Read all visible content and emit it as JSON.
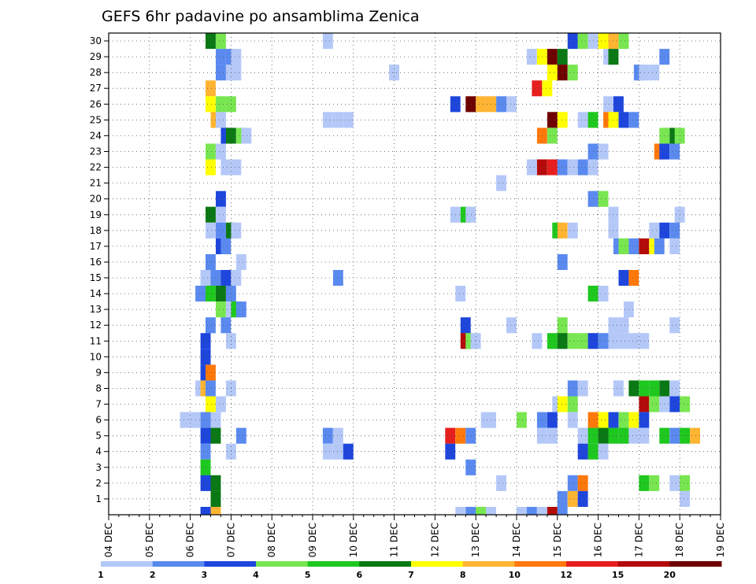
{
  "chart_data": {
    "type": "heatmap",
    "title": "GEFS 6hr padavine po ansamblima Zenica",
    "y_categories": [
      "1",
      "2",
      "3",
      "4",
      "5",
      "6",
      "7",
      "8",
      "9",
      "10",
      "11",
      "12",
      "13",
      "14",
      "15",
      "16",
      "17",
      "18",
      "19",
      "20",
      "21",
      "22",
      "23",
      "24",
      "25",
      "26",
      "27",
      "28",
      "29",
      "30"
    ],
    "x_ticks": [
      "04 DEC",
      "05 DEC",
      "06 DEC",
      "07 DEC",
      "08 DEC",
      "09 DEC",
      "10 DEC",
      "11 DEC",
      "12 DEC",
      "13 DEC",
      "14 DEC",
      "15 DEC",
      "16 DEC",
      "17 DEC",
      "18 DEC",
      "19 DEC"
    ],
    "x_range_days": [
      0,
      15
    ],
    "steps_per_day": 4,
    "grid": true,
    "colorbar": {
      "labels": [
        "1",
        "2",
        "3",
        "4",
        "5",
        "6",
        "7",
        "8",
        "10",
        "12",
        "15",
        "20"
      ],
      "colors": [
        "#b4c8f8",
        "#5a8aef",
        "#1e46dc",
        "#78e650",
        "#1ec81e",
        "#0a7814",
        "#ffff00",
        "#ffb432",
        "#ff780a",
        "#e61e1e",
        "#b40a0a",
        "#6e0000"
      ]
    },
    "cells": [
      [
        9.5,
        30,
        5
      ],
      [
        10.5,
        30,
        3
      ],
      [
        21,
        30,
        0
      ],
      [
        45,
        30,
        3
      ],
      [
        45,
        30,
        2
      ],
      [
        46,
        30,
        3
      ],
      [
        47,
        30,
        0
      ],
      [
        48,
        30,
        6
      ],
      [
        49,
        30,
        7
      ],
      [
        50,
        30,
        3
      ],
      [
        10.5,
        29,
        1
      ],
      [
        11.5,
        29,
        1
      ],
      [
        12,
        29,
        0
      ],
      [
        41,
        29,
        0
      ],
      [
        42,
        29,
        6
      ],
      [
        43,
        29,
        11
      ],
      [
        44,
        29,
        5
      ],
      [
        48.5,
        29,
        0
      ],
      [
        49,
        29,
        5
      ],
      [
        54,
        29,
        1
      ],
      [
        10.5,
        28,
        1
      ],
      [
        11.5,
        28,
        0
      ],
      [
        12,
        28,
        0
      ],
      [
        27.5,
        28,
        0
      ],
      [
        43,
        28,
        6
      ],
      [
        44,
        28,
        11
      ],
      [
        45,
        28,
        3
      ],
      [
        51.5,
        28,
        1
      ],
      [
        52,
        28,
        0
      ],
      [
        53,
        28,
        0
      ],
      [
        9.5,
        27,
        7
      ],
      [
        41.5,
        27,
        9
      ],
      [
        42.5,
        27,
        6
      ],
      [
        9.5,
        26,
        6
      ],
      [
        10.5,
        26,
        3
      ],
      [
        11.5,
        26,
        3
      ],
      [
        33.5,
        26,
        2
      ],
      [
        35,
        26,
        11
      ],
      [
        36,
        26,
        7
      ],
      [
        37,
        26,
        7
      ],
      [
        38,
        26,
        1
      ],
      [
        39,
        26,
        0
      ],
      [
        48.5,
        26,
        0
      ],
      [
        49.5,
        26,
        2
      ],
      [
        10,
        25,
        7
      ],
      [
        10.5,
        25,
        0
      ],
      [
        21,
        25,
        0
      ],
      [
        22,
        25,
        0
      ],
      [
        23,
        25,
        0
      ],
      [
        43,
        25,
        11
      ],
      [
        44,
        25,
        6
      ],
      [
        46,
        25,
        0
      ],
      [
        47,
        25,
        4
      ],
      [
        48.5,
        25,
        8
      ],
      [
        49,
        25,
        6
      ],
      [
        50,
        25,
        2
      ],
      [
        51,
        25,
        1
      ],
      [
        11,
        24,
        2
      ],
      [
        11.5,
        24,
        5
      ],
      [
        12.5,
        24,
        3
      ],
      [
        13,
        24,
        0
      ],
      [
        42,
        24,
        8
      ],
      [
        43,
        24,
        3
      ],
      [
        54,
        24,
        3
      ],
      [
        55,
        24,
        5
      ],
      [
        55.5,
        24,
        3
      ],
      [
        9.5,
        23,
        3
      ],
      [
        10.5,
        23,
        0
      ],
      [
        47,
        23,
        1
      ],
      [
        48,
        23,
        0
      ],
      [
        53.5,
        23,
        8
      ],
      [
        54,
        23,
        2
      ],
      [
        55,
        23,
        1
      ],
      [
        9.5,
        22,
        6
      ],
      [
        11,
        22,
        0
      ],
      [
        12,
        22,
        0
      ],
      [
        41,
        22,
        0
      ],
      [
        42,
        22,
        10
      ],
      [
        43,
        22,
        9
      ],
      [
        44,
        22,
        1
      ],
      [
        45,
        22,
        0
      ],
      [
        46,
        22,
        1
      ],
      [
        47,
        22,
        0
      ],
      [
        38,
        21,
        0
      ],
      [
        10.5,
        20,
        2
      ],
      [
        47,
        20,
        1
      ],
      [
        48,
        20,
        3
      ],
      [
        9.5,
        19,
        5
      ],
      [
        10.5,
        19,
        0
      ],
      [
        33.5,
        19,
        0
      ],
      [
        34.5,
        19,
        4
      ],
      [
        35,
        19,
        0
      ],
      [
        49,
        19,
        0
      ],
      [
        55.5,
        19,
        0
      ],
      [
        9.5,
        18,
        0
      ],
      [
        10.5,
        18,
        1
      ],
      [
        11.5,
        18,
        5
      ],
      [
        12,
        18,
        0
      ],
      [
        43.5,
        18,
        4
      ],
      [
        44,
        18,
        7
      ],
      [
        45,
        18,
        0
      ],
      [
        49,
        18,
        0
      ],
      [
        53,
        18,
        0
      ],
      [
        54,
        18,
        2
      ],
      [
        55,
        18,
        1
      ],
      [
        10.5,
        17,
        2
      ],
      [
        11,
        17,
        1
      ],
      [
        49.5,
        17,
        1
      ],
      [
        50,
        17,
        3
      ],
      [
        51,
        17,
        1
      ],
      [
        52,
        17,
        10
      ],
      [
        53,
        17,
        6
      ],
      [
        53.5,
        17,
        1
      ],
      [
        55,
        17,
        0
      ],
      [
        9.5,
        16,
        1
      ],
      [
        12.5,
        16,
        0
      ],
      [
        44,
        16,
        1
      ],
      [
        9,
        15,
        0
      ],
      [
        10,
        15,
        1
      ],
      [
        11,
        15,
        2
      ],
      [
        12,
        15,
        0
      ],
      [
        22,
        15,
        1
      ],
      [
        50,
        15,
        2
      ],
      [
        51,
        15,
        8
      ],
      [
        8.5,
        14,
        1
      ],
      [
        9.5,
        14,
        4
      ],
      [
        10.5,
        14,
        5
      ],
      [
        11.5,
        14,
        1
      ],
      [
        34,
        14,
        0
      ],
      [
        47,
        14,
        4
      ],
      [
        48,
        14,
        0
      ],
      [
        10.5,
        13,
        3
      ],
      [
        11.5,
        13,
        0
      ],
      [
        12,
        13,
        4
      ],
      [
        12.5,
        13,
        1
      ],
      [
        50.5,
        13,
        0
      ],
      [
        9.5,
        12,
        1
      ],
      [
        11,
        12,
        1
      ],
      [
        34.5,
        12,
        2
      ],
      [
        39,
        12,
        0
      ],
      [
        44,
        12,
        3
      ],
      [
        49,
        12,
        0
      ],
      [
        50,
        12,
        0
      ],
      [
        55,
        12,
        0
      ],
      [
        9,
        11,
        2
      ],
      [
        11.5,
        11,
        0
      ],
      [
        34.5,
        11,
        10
      ],
      [
        35,
        11,
        3
      ],
      [
        35.5,
        11,
        0
      ],
      [
        41.5,
        11,
        0
      ],
      [
        43,
        11,
        4
      ],
      [
        44,
        11,
        5
      ],
      [
        45,
        11,
        3
      ],
      [
        46,
        11,
        3
      ],
      [
        47,
        11,
        2
      ],
      [
        48,
        11,
        1
      ],
      [
        49,
        11,
        0
      ],
      [
        50,
        11,
        0
      ],
      [
        51,
        11,
        0
      ],
      [
        52,
        11,
        0
      ],
      [
        9,
        10,
        2
      ],
      [
        9,
        9,
        2
      ],
      [
        9.5,
        9,
        8
      ],
      [
        8.5,
        8,
        0
      ],
      [
        9,
        8,
        7
      ],
      [
        9.5,
        8,
        1
      ],
      [
        11.5,
        8,
        0
      ],
      [
        45,
        8,
        1
      ],
      [
        46,
        8,
        0
      ],
      [
        49.5,
        8,
        0
      ],
      [
        51,
        8,
        5
      ],
      [
        52,
        8,
        4
      ],
      [
        53,
        8,
        4
      ],
      [
        54,
        8,
        5
      ],
      [
        55,
        8,
        0
      ],
      [
        9.5,
        7,
        6
      ],
      [
        10.5,
        7,
        0
      ],
      [
        43.5,
        7,
        0
      ],
      [
        44,
        7,
        6
      ],
      [
        45,
        7,
        3
      ],
      [
        52,
        7,
        10
      ],
      [
        53,
        7,
        3
      ],
      [
        54,
        7,
        0
      ],
      [
        55,
        7,
        2
      ],
      [
        56,
        7,
        3
      ],
      [
        7,
        6,
        0
      ],
      [
        8,
        6,
        0
      ],
      [
        9,
        6,
        1
      ],
      [
        10,
        6,
        0
      ],
      [
        36.5,
        6,
        0
      ],
      [
        37,
        6,
        0
      ],
      [
        40,
        6,
        3
      ],
      [
        42,
        6,
        1
      ],
      [
        43,
        6,
        2
      ],
      [
        45,
        6,
        0
      ],
      [
        47,
        6,
        8
      ],
      [
        48,
        6,
        6
      ],
      [
        49,
        6,
        2
      ],
      [
        50,
        6,
        3
      ],
      [
        51,
        6,
        6
      ],
      [
        52,
        6,
        2
      ],
      [
        9,
        5,
        2
      ],
      [
        10,
        5,
        5
      ],
      [
        12.5,
        5,
        1
      ],
      [
        21,
        5,
        1
      ],
      [
        22,
        5,
        0
      ],
      [
        33,
        5,
        9
      ],
      [
        34,
        5,
        8
      ],
      [
        35,
        5,
        1
      ],
      [
        42,
        5,
        0
      ],
      [
        43,
        5,
        0
      ],
      [
        46,
        5,
        0
      ],
      [
        47,
        5,
        4
      ],
      [
        48,
        5,
        5
      ],
      [
        49,
        5,
        4
      ],
      [
        50,
        5,
        4
      ],
      [
        51,
        5,
        0
      ],
      [
        52,
        5,
        0
      ],
      [
        54,
        5,
        4
      ],
      [
        55,
        5,
        1
      ],
      [
        56,
        5,
        4
      ],
      [
        57,
        5,
        7
      ],
      [
        9,
        4,
        1
      ],
      [
        11.5,
        4,
        0
      ],
      [
        21,
        4,
        0
      ],
      [
        22,
        4,
        0
      ],
      [
        23,
        4,
        2
      ],
      [
        33,
        4,
        2
      ],
      [
        46,
        4,
        2
      ],
      [
        47,
        4,
        4
      ],
      [
        48,
        4,
        0
      ],
      [
        9,
        3,
        4
      ],
      [
        35,
        3,
        1
      ],
      [
        9,
        2,
        2
      ],
      [
        10,
        2,
        5
      ],
      [
        38,
        2,
        0
      ],
      [
        45,
        2,
        1
      ],
      [
        46,
        2,
        8
      ],
      [
        52,
        2,
        4
      ],
      [
        53,
        2,
        3
      ],
      [
        55,
        2,
        0
      ],
      [
        56,
        2,
        3
      ],
      [
        10,
        1,
        5
      ],
      [
        44,
        1,
        1
      ],
      [
        45,
        1,
        7
      ],
      [
        46,
        1,
        2
      ],
      [
        56,
        1,
        0
      ],
      [
        9,
        0.5,
        2
      ],
      [
        10,
        0.5,
        7
      ],
      [
        34,
        0.5,
        0
      ],
      [
        35,
        0.5,
        1
      ],
      [
        36,
        0.5,
        3
      ],
      [
        37,
        0.5,
        0
      ],
      [
        40,
        0.5,
        0
      ],
      [
        41,
        0.5,
        1
      ],
      [
        42,
        0.5,
        0
      ],
      [
        43,
        0.5,
        10
      ],
      [
        44,
        0.5,
        1
      ]
    ]
  }
}
